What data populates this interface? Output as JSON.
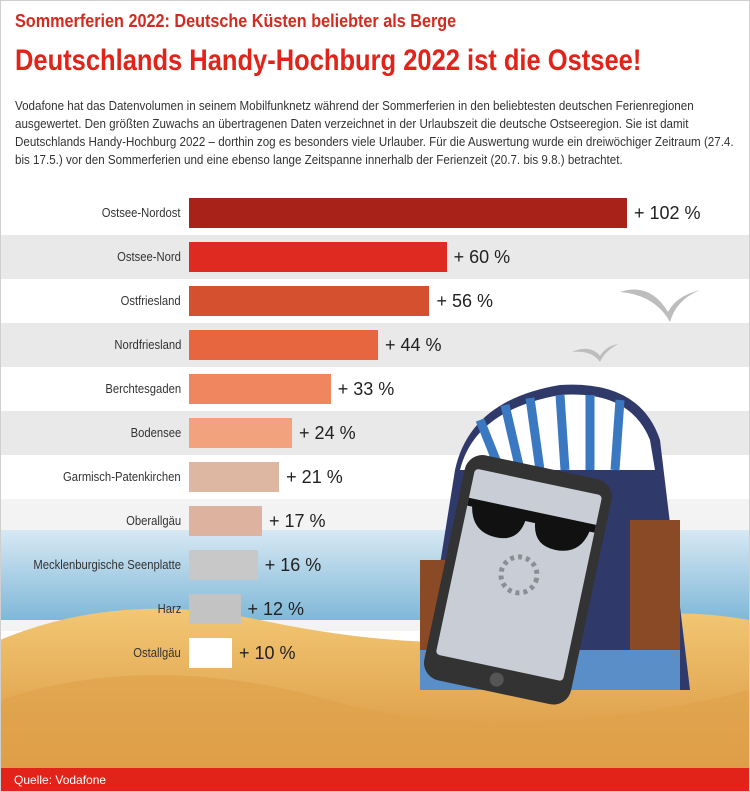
{
  "header": {
    "kicker": "Sommerferien 2022: Deutsche Küsten beliebter als Berge",
    "title": "Deutschlands Handy-Hochburg 2022 ist die Ostsee!",
    "intro": "Vodafone hat das Datenvolumen in seinem Mobilfunknetz während der Sommerferien in den beliebtesten deutschen Ferienregionen ausgewertet. Den größten Zuwachs an übertragenen Daten verzeichnet in der Urlaubszeit die deutsche Ostseeregion. Sie ist damit Deutschlands Handy-Hochburg 2022 – dorthin zog es besonders viele Urlauber. Für die Auswertung wurde ein dreiwöchiger Zeitraum (27.4. bis 17.5.) vor den Sommerferien und eine ebenso lange Zeitspanne innerhalb der Ferienzeit (20.7. bis 9.8.) betrachtet."
  },
  "chart_data": {
    "type": "bar",
    "orientation": "horizontal",
    "categories": [
      "Ostsee-Nordost",
      "Ostsee-Nord",
      "Ostfriesland",
      "Nordfriesland",
      "Berchtesgaden",
      "Bodensee",
      "Garmisch-Patenkirchen",
      "Oberallgäu",
      "Mecklenburgische Seenplatte",
      "Harz",
      "Ostallgäu"
    ],
    "values": [
      102,
      60,
      56,
      44,
      33,
      24,
      21,
      17,
      16,
      12,
      10
    ],
    "value_labels": [
      "+ 102 %",
      "+ 60 %",
      "+ 56 %",
      "+ 44 %",
      "+ 33 %",
      "+ 24 %",
      "+ 21 %",
      "+ 17 %",
      "+ 16 %",
      "+ 12 %",
      "+ 10 %"
    ],
    "colors": [
      "#a82219",
      "#de2a20",
      "#d4502e",
      "#e8663f",
      "#ef8660",
      "#f2a27c",
      "#deb7a3",
      "#ddb3a0",
      "#c8c8c8",
      "#c3c3c3",
      "#ffffff"
    ],
    "xlim": [
      0,
      102
    ],
    "unit": "%"
  },
  "footer": {
    "source": "Quelle: Vodafone"
  },
  "colors": {
    "brand": "#e1231a"
  }
}
